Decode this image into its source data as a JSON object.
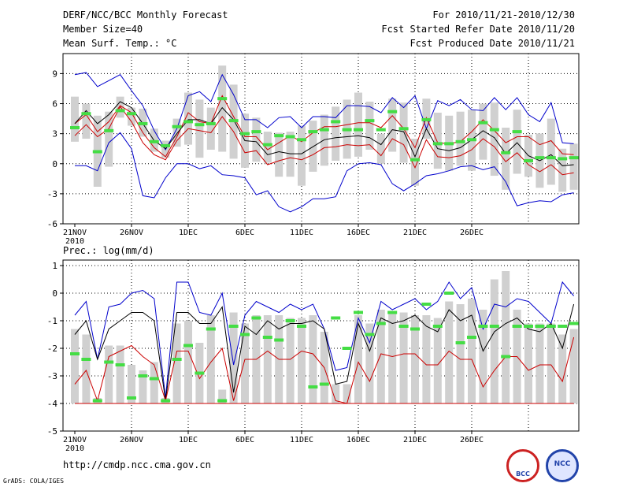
{
  "header": {
    "title": "DERF/NCC/BCC Monthly Forecast",
    "member_size": "Member Size=40",
    "variable": "Mean Surf. Temp.: °C",
    "period": "For 2010/11/21-2010/12/30",
    "fcst_started": "Fcst Started Refer Date 2010/11/20",
    "fcst_produced": "Fcst Produced Date 2010/11/21"
  },
  "footer": {
    "url": "http://cmdp.ncc.cma.gov.cn",
    "grads": "GrADS: COLA/IGES",
    "logo_left": "BCC",
    "logo_right": "NCC"
  },
  "colors": {
    "mean": "#000000",
    "blue": "#0000cc",
    "red": "#cc0000",
    "green": "#44dd44",
    "bar": "#d0d0d0",
    "grid": "#000000"
  },
  "chart_data": [
    {
      "type": "line",
      "title": "Mean Surf. Temp.: °C",
      "x_ticks": [
        "21NOV\n2010",
        "26NOV",
        "1DEC",
        "6DEC",
        "11DEC",
        "16DEC",
        "21DEC",
        "26DEC"
      ],
      "ylim": [
        -6,
        11
      ],
      "yticks": [
        -6,
        -3,
        0,
        3,
        6,
        9
      ],
      "series": [
        {
          "name": "max",
          "values": [
            8.9,
            9.1,
            7.7,
            8.3,
            8.9,
            7.3,
            5.8,
            3.3,
            1.4,
            3.5,
            6.8,
            7.2,
            6.2,
            8.9,
            6.9,
            4.4,
            4.4,
            3.6,
            4.6,
            4.7,
            3.6,
            4.7,
            4.7,
            4.6,
            5.8,
            5.8,
            5.7,
            5.1,
            6.6,
            5.6,
            6.8,
            3.5,
            6.3,
            5.8,
            6.4,
            5.4,
            5.3,
            6.6,
            5.4,
            6.6,
            4.9,
            4.2,
            6.1,
            2.1,
            2.0
          ]
        },
        {
          "name": "upper",
          "values": [
            4.0,
            4.9,
            3.2,
            4.2,
            5.8,
            5.1,
            3.1,
            1.6,
            0.7,
            2.7,
            5.1,
            4.2,
            4.0,
            6.8,
            4.7,
            2.7,
            2.7,
            1.4,
            2.1,
            2.8,
            2.2,
            3.1,
            3.7,
            3.7,
            3.9,
            4.1,
            4.1,
            3.6,
            4.8,
            3.5,
            1.6,
            4.6,
            2.1,
            2.0,
            2.2,
            3.2,
            4.4,
            3.3,
            2.1,
            2.7,
            2.7,
            1.9,
            2.3,
            1.0,
            0.9
          ]
        },
        {
          "name": "mean",
          "values": [
            4.0,
            5.3,
            4.0,
            4.9,
            6.2,
            5.6,
            4.0,
            2.3,
            1.5,
            3.0,
            4.4,
            4.4,
            4.0,
            5.6,
            4.4,
            2.3,
            2.2,
            0.9,
            1.2,
            1.0,
            1.0,
            1.7,
            2.4,
            2.6,
            2.7,
            2.8,
            2.6,
            1.9,
            3.4,
            3.2,
            0.7,
            3.5,
            1.5,
            1.3,
            1.6,
            2.4,
            3.3,
            2.6,
            1.0,
            2.1,
            0.8,
            0.3,
            0.9,
            -0.2,
            -0.1
          ]
        },
        {
          "name": "lower",
          "values": [
            2.8,
            3.9,
            2.7,
            3.5,
            5.7,
            4.2,
            2.1,
            0.9,
            0.4,
            2.3,
            3.5,
            3.3,
            3.1,
            4.7,
            3.2,
            1.1,
            1.3,
            -0.1,
            0.3,
            0.6,
            0.4,
            0.9,
            1.6,
            1.7,
            1.9,
            1.8,
            1.9,
            0.8,
            2.5,
            1.9,
            -0.4,
            2.4,
            0.7,
            0.6,
            0.8,
            1.4,
            2.5,
            1.7,
            0.2,
            1.1,
            -0.1,
            -0.8,
            -0.1,
            -1.1,
            -0.9
          ]
        },
        {
          "name": "min",
          "values": [
            -0.2,
            -0.2,
            -0.7,
            2.1,
            3.1,
            1.5,
            -3.2,
            -3.4,
            -1.4,
            0.0,
            0.0,
            -0.5,
            -0.2,
            -1.1,
            -1.2,
            -1.4,
            -3.1,
            -2.7,
            -4.3,
            -4.8,
            -4.3,
            -3.5,
            -3.5,
            -3.3,
            -0.7,
            0.0,
            0.1,
            -0.1,
            -2.0,
            -2.7,
            -2.0,
            -1.2,
            -1.0,
            -0.7,
            -0.3,
            -0.2,
            -0.6,
            -0.3,
            -1.8,
            -4.2,
            -3.9,
            -3.7,
            -3.8,
            -3.1,
            -2.9
          ]
        },
        {
          "name": "observed",
          "values": [
            3.6,
            5.0,
            1.2,
            3.3,
            5.3,
            5.0,
            4.0,
            2.2,
            1.8,
            3.7,
            4.2,
            3.9,
            4.0,
            6.5,
            4.3,
            3.0,
            3.2,
            1.9,
            2.8,
            2.7,
            2.4,
            3.2,
            3.4,
            4.2,
            3.4,
            3.4,
            4.3,
            3.4,
            5.2,
            3.5,
            0.4,
            4.4,
            2.0,
            2.0,
            2.2,
            2.4,
            4.1,
            3.4,
            1.1,
            3.2,
            0.3,
            0.6,
            0.6,
            0.5,
            0.6
          ]
        },
        {
          "name": "spread_low",
          "values": [
            2.2,
            2.5,
            -2.3,
            -0.3,
            4.6,
            3.8,
            2.7,
            1.2,
            0.6,
            1.7,
            1.9,
            0.6,
            1.4,
            1.2,
            0.5,
            -0.4,
            0.2,
            0.1,
            -1.3,
            -1.3,
            -2.2,
            -0.8,
            -0.2,
            0.3,
            0.5,
            0.7,
            1.4,
            0.0,
            1.2,
            0.1,
            -2.2,
            2.5,
            -0.5,
            -0.7,
            -0.2,
            -0.7,
            0.4,
            -1.2,
            -2.6,
            -1.0,
            -1.3,
            -2.4,
            -2.1,
            -2.8,
            -2.6
          ]
        },
        {
          "name": "spread_high",
          "values": [
            6.7,
            6.0,
            4.8,
            5.2,
            6.7,
            5.6,
            5.5,
            3.5,
            2.3,
            4.5,
            7.1,
            6.4,
            5.6,
            9.8,
            7.9,
            5.0,
            4.6,
            3.2,
            3.1,
            3.2,
            3.8,
            4.3,
            4.9,
            5.7,
            6.4,
            7.1,
            6.2,
            3.0,
            6.5,
            6.1,
            2.5,
            6.5,
            5.1,
            4.8,
            5.2,
            5.4,
            6.0,
            6.1,
            3.6,
            5.4,
            2.9,
            3.0,
            4.5,
            1.5,
            2.0
          ]
        }
      ]
    },
    {
      "type": "line",
      "title": "Prec.: log(mm/d)",
      "x_ticks": [
        "21NOV\n2010",
        "26NOV",
        "1DEC",
        "6DEC",
        "11DEC",
        "16DEC",
        "21DEC",
        "26DEC"
      ],
      "ylim": [
        -5,
        1.2
      ],
      "yticks": [
        -5,
        -4,
        -3,
        -2,
        -1,
        0,
        1
      ],
      "series": [
        {
          "name": "max",
          "values": [
            -0.8,
            -0.3,
            -2.4,
            -0.5,
            -0.4,
            0.0,
            0.1,
            -0.2,
            -3.8,
            0.4,
            0.4,
            -0.7,
            -0.8,
            0.0,
            -2.6,
            -0.8,
            -0.3,
            -0.5,
            -0.7,
            -0.4,
            -0.6,
            -0.4,
            -1.3,
            -2.8,
            -2.7,
            -0.9,
            -1.8,
            -0.3,
            -0.6,
            -0.4,
            -0.2,
            -0.6,
            -0.3,
            0.4,
            -0.2,
            0.2,
            -1.3,
            -0.4,
            -0.5,
            -0.2,
            -0.3,
            -0.7,
            -1.1,
            0.4,
            -0.1
          ]
        },
        {
          "name": "mean",
          "values": [
            -1.5,
            -1.0,
            -2.4,
            -1.3,
            -1.0,
            -0.7,
            -0.7,
            -1.0,
            -3.9,
            -0.7,
            -0.7,
            -1.1,
            -1.1,
            -0.5,
            -3.6,
            -1.2,
            -1.5,
            -1.0,
            -1.3,
            -1.1,
            -1.1,
            -1.0,
            -1.3,
            -3.3,
            -3.2,
            -1.1,
            -2.1,
            -0.9,
            -1.1,
            -1.0,
            -0.8,
            -1.2,
            -1.4,
            -0.6,
            -1.0,
            -0.8,
            -2.1,
            -1.4,
            -1.1,
            -0.9,
            -1.3,
            -1.4,
            -1.1,
            -2.0,
            -0.4
          ]
        },
        {
          "name": "min",
          "values": [
            -3.3,
            -2.8,
            -3.9,
            -2.3,
            -2.1,
            -1.9,
            -2.3,
            -2.6,
            -3.9,
            -2.1,
            -2.1,
            -3.1,
            -2.5,
            -2.0,
            -3.9,
            -2.4,
            -2.4,
            -2.1,
            -2.4,
            -2.4,
            -2.1,
            -2.2,
            -2.7,
            -3.9,
            -4.0,
            -2.5,
            -3.2,
            -2.2,
            -2.3,
            -2.2,
            -2.2,
            -2.6,
            -2.6,
            -2.1,
            -2.4,
            -2.4,
            -3.4,
            -2.8,
            -2.3,
            -2.3,
            -2.8,
            -2.6,
            -2.6,
            -3.2,
            -1.6
          ]
        },
        {
          "name": "floor",
          "values": [
            -4,
            -4,
            -4,
            -4,
            -4,
            -4,
            -4,
            -4,
            -4,
            -4,
            -4,
            -4,
            -4,
            -4,
            -4,
            -4,
            -4,
            -4,
            -4,
            -4,
            -4,
            -4,
            -4,
            -4,
            -4,
            -4,
            -4,
            -4,
            -4,
            -4,
            -4,
            -4,
            -4,
            -4,
            -4,
            -4,
            -4,
            -4,
            -4,
            -4,
            -4,
            -4,
            -4,
            -4,
            -4
          ]
        },
        {
          "name": "observed",
          "values": [
            -2.2,
            -2.4,
            -3.9,
            -2.5,
            -2.6,
            -3.8,
            -3.0,
            -3.1,
            -3.9,
            -2.4,
            -1.9,
            -2.9,
            -1.3,
            -3.9,
            -1.2,
            -1.5,
            -0.9,
            -1.6,
            -1.7,
            -1.0,
            -1.2,
            -3.4,
            -3.3,
            -0.9,
            -2.0,
            -0.7,
            -1.5,
            -1.1,
            -0.7,
            -1.2,
            -1.3,
            -0.4,
            -1.2,
            0.0,
            -1.8,
            -1.6,
            -1.2,
            -1.2,
            -2.3,
            -1.2,
            -1.2,
            -1.2,
            -1.2,
            -1.2,
            -1.1
          ]
        },
        {
          "name": "spread_high",
          "values": [
            -1.3,
            -1.5,
            -3.8,
            -1.9,
            -1.9,
            -2.6,
            -2.8,
            -2.5,
            -3.8,
            -1.1,
            -1.0,
            -1.8,
            -0.8,
            -3.5,
            -0.7,
            -1.1,
            -0.8,
            -0.8,
            -0.8,
            -0.9,
            -0.9,
            -0.8,
            -1.4,
            -3.3,
            -3.3,
            -0.8,
            -1.1,
            -0.6,
            -0.7,
            -0.7,
            -0.8,
            -0.8,
            -0.9,
            -0.3,
            -0.4,
            -0.2,
            -0.6,
            0.5,
            0.8,
            -0.6,
            -1.1,
            -1.1,
            -1.1,
            -1.5,
            -1.3
          ]
        }
      ]
    }
  ]
}
